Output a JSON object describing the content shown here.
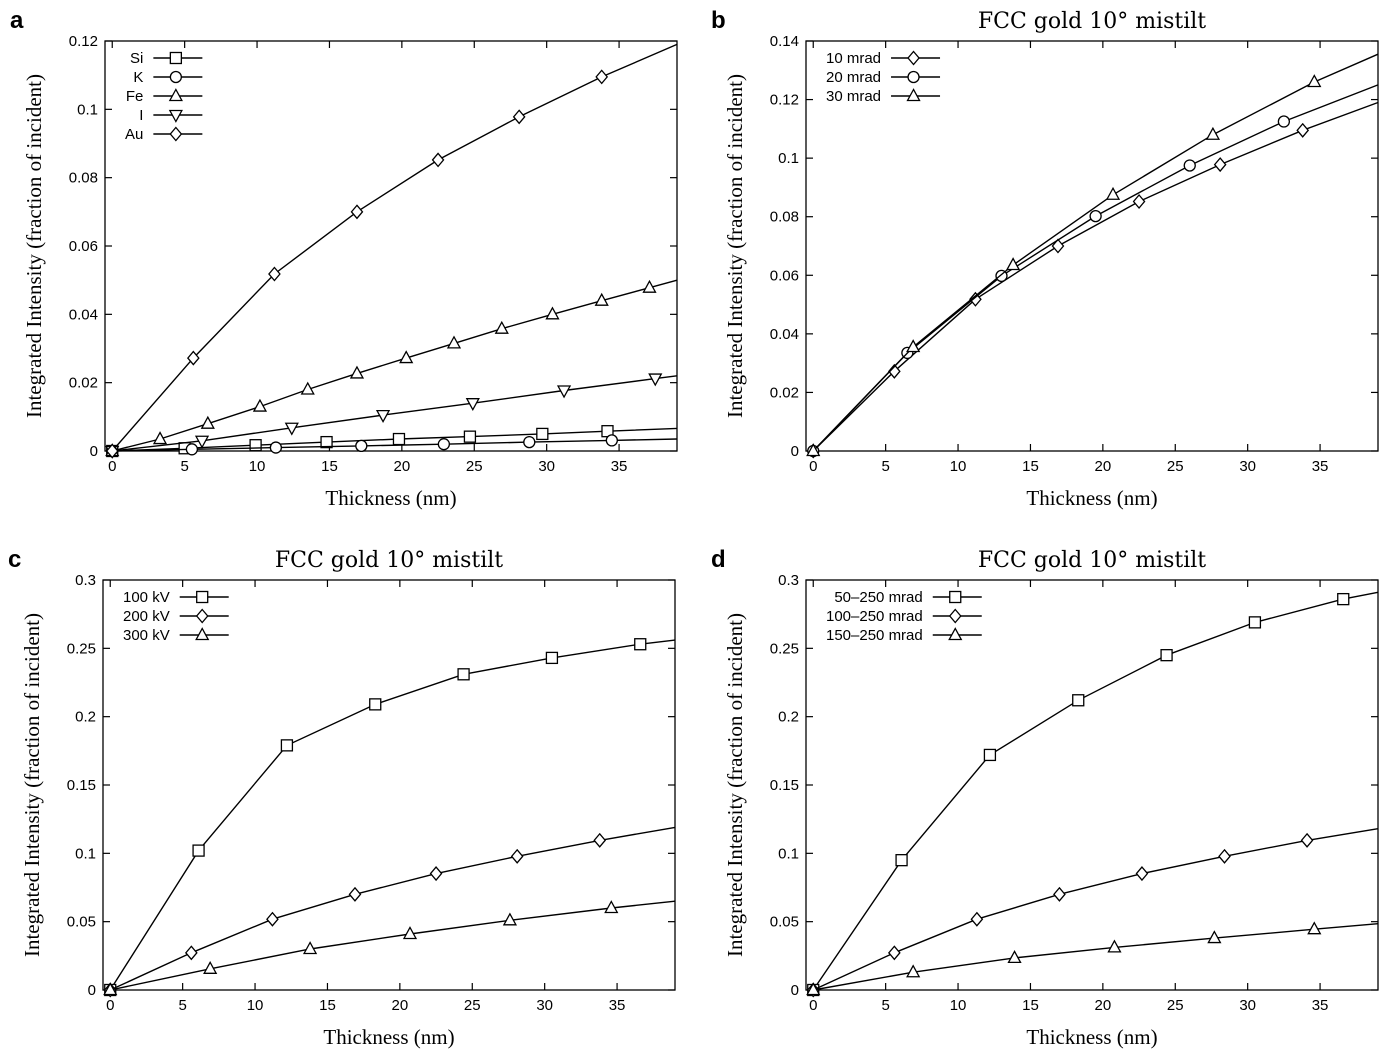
{
  "chart_data": [
    {
      "panel": "a",
      "type": "line",
      "title": "",
      "xlabel": "Thickness (nm)",
      "ylabel": "Integrated Intensity (fraction of incident)",
      "xlim": [
        -0.5,
        39
      ],
      "ylim": [
        0,
        0.12
      ],
      "xticks": [
        0,
        5,
        10,
        15,
        20,
        25,
        30,
        35
      ],
      "yticks": [
        0,
        0.02,
        0.04,
        0.06,
        0.08,
        0.1,
        0.12
      ],
      "ytick_labels": [
        "0",
        "0.02",
        "0.04",
        "0.06",
        "0.08",
        "0.1",
        "0.12"
      ],
      "grid": false,
      "legend": "top-left",
      "series": [
        {
          "name": "Si",
          "marker": "square",
          "x": [
            0,
            5.0,
            9.9,
            14.8,
            19.8,
            24.7,
            29.7,
            34.2,
            39
          ],
          "y": [
            0,
            0.0008,
            0.0017,
            0.0026,
            0.0035,
            0.0042,
            0.005,
            0.0058,
            0.0066
          ]
        },
        {
          "name": "K",
          "marker": "circle",
          "x": [
            0,
            5.5,
            11.3,
            17.2,
            22.9,
            28.8,
            34.5,
            39
          ],
          "y": [
            0,
            0.0005,
            0.001,
            0.0015,
            0.002,
            0.0026,
            0.0031,
            0.0035
          ]
        },
        {
          "name": "Fe",
          "marker": "triangle-up",
          "x": [
            0,
            3.3,
            6.6,
            10.2,
            13.5,
            16.9,
            20.3,
            23.6,
            26.9,
            30.4,
            33.8,
            37.1,
            39
          ],
          "y": [
            0,
            0.0035,
            0.008,
            0.013,
            0.018,
            0.0227,
            0.0272,
            0.0315,
            0.0358,
            0.04,
            0.044,
            0.0478,
            0.05
          ]
        },
        {
          "name": "I",
          "marker": "triangle-down",
          "x": [
            0,
            6.2,
            12.4,
            18.7,
            24.9,
            31.2,
            37.5,
            39
          ],
          "y": [
            0,
            0.003,
            0.0068,
            0.0105,
            0.014,
            0.0177,
            0.0212,
            0.022
          ]
        },
        {
          "name": "Au",
          "marker": "diamond",
          "x": [
            0,
            5.6,
            11.2,
            16.9,
            22.5,
            28.1,
            33.8,
            39
          ],
          "y": [
            0,
            0.0272,
            0.0518,
            0.07,
            0.0852,
            0.0978,
            0.1095,
            0.119
          ]
        }
      ]
    },
    {
      "panel": "b",
      "type": "line",
      "title": "FCC gold 10° mistilt",
      "xlabel": "Thickness (nm)",
      "ylabel": "Integrated Intensity (fraction of incident)",
      "xlim": [
        -0.5,
        39
      ],
      "ylim": [
        0,
        0.14
      ],
      "xticks": [
        0,
        5,
        10,
        15,
        20,
        25,
        30,
        35
      ],
      "yticks": [
        0,
        0.02,
        0.04,
        0.06,
        0.08,
        0.1,
        0.12,
        0.14
      ],
      "ytick_labels": [
        "0",
        "0.02",
        "0.04",
        "0.06",
        "0.08",
        "0.1",
        "0.12",
        "0.14"
      ],
      "grid": false,
      "legend": "top-left",
      "series": [
        {
          "name": "10 mrad",
          "marker": "diamond",
          "x": [
            0,
            5.6,
            11.2,
            16.9,
            22.5,
            28.1,
            33.8,
            39
          ],
          "y": [
            0,
            0.0272,
            0.0518,
            0.07,
            0.0852,
            0.0978,
            0.1095,
            0.119
          ]
        },
        {
          "name": "20 mrad",
          "marker": "circle",
          "x": [
            0,
            6.5,
            13.0,
            19.5,
            26.0,
            32.5,
            39
          ],
          "y": [
            0,
            0.0335,
            0.0598,
            0.0802,
            0.0975,
            0.1125,
            0.125
          ]
        },
        {
          "name": "30 mrad",
          "marker": "triangle-up",
          "x": [
            0,
            6.9,
            13.8,
            20.7,
            27.6,
            34.6,
            39
          ],
          "y": [
            0,
            0.0355,
            0.0635,
            0.0875,
            0.108,
            0.126,
            0.1355
          ]
        }
      ]
    },
    {
      "panel": "c",
      "type": "line",
      "title": "FCC gold 10° mistilt",
      "xlabel": "Thickness (nm)",
      "ylabel": "Integrated Intensity (fraction of incident)",
      "xlim": [
        -0.5,
        39
      ],
      "ylim": [
        0,
        0.3
      ],
      "xticks": [
        0,
        5,
        10,
        15,
        20,
        25,
        30,
        35
      ],
      "yticks": [
        0,
        0.05,
        0.1,
        0.15,
        0.2,
        0.25,
        0.3
      ],
      "ytick_labels": [
        "0",
        "0.05",
        "0.1",
        "0.15",
        "0.2",
        "0.25",
        "0.3"
      ],
      "grid": false,
      "legend": "top-left",
      "series": [
        {
          "name": "100 kV",
          "marker": "square",
          "x": [
            0,
            6.1,
            12.2,
            18.3,
            24.4,
            30.5,
            36.6,
            39
          ],
          "y": [
            0,
            0.102,
            0.179,
            0.209,
            0.231,
            0.243,
            0.253,
            0.256
          ]
        },
        {
          "name": "200 kV",
          "marker": "diamond",
          "x": [
            0,
            5.6,
            11.2,
            16.9,
            22.5,
            28.1,
            33.8,
            39
          ],
          "y": [
            0,
            0.0272,
            0.0518,
            0.07,
            0.0852,
            0.0978,
            0.1095,
            0.119
          ]
        },
        {
          "name": "300 kV",
          "marker": "triangle-up",
          "x": [
            0,
            6.9,
            13.8,
            20.7,
            27.6,
            34.6,
            39
          ],
          "y": [
            0,
            0.0155,
            0.03,
            0.041,
            0.051,
            0.06,
            0.065
          ]
        }
      ]
    },
    {
      "panel": "d",
      "type": "line",
      "title": "FCC gold 10° mistilt",
      "xlabel": "Thickness (nm)",
      "ylabel": "Integrated Intensity (fraction of incident)",
      "xlim": [
        -0.5,
        39
      ],
      "ylim": [
        0,
        0.3
      ],
      "xticks": [
        0,
        5,
        10,
        15,
        20,
        25,
        30,
        35
      ],
      "yticks": [
        0,
        0.05,
        0.1,
        0.15,
        0.2,
        0.25,
        0.3
      ],
      "ytick_labels": [
        "0",
        "0.05",
        "0.1",
        "0.15",
        "0.2",
        "0.25",
        "0.3"
      ],
      "grid": false,
      "legend": "top-left",
      "series": [
        {
          "name": "50–250 mrad",
          "marker": "square",
          "x": [
            0,
            6.1,
            12.2,
            18.3,
            24.4,
            30.5,
            36.6,
            39
          ],
          "y": [
            0,
            0.095,
            0.172,
            0.212,
            0.245,
            0.269,
            0.286,
            0.291
          ]
        },
        {
          "name": "100–250 mrad",
          "marker": "diamond",
          "x": [
            0,
            5.6,
            11.3,
            17.0,
            22.7,
            28.4,
            34.1,
            39
          ],
          "y": [
            0,
            0.0272,
            0.0518,
            0.07,
            0.0852,
            0.0978,
            0.1095,
            0.118
          ]
        },
        {
          "name": "150–250 mrad",
          "marker": "triangle-up",
          "x": [
            0,
            6.9,
            13.9,
            20.8,
            27.7,
            34.6,
            39
          ],
          "y": [
            0,
            0.013,
            0.0235,
            0.0312,
            0.038,
            0.0445,
            0.0485
          ]
        }
      ]
    }
  ]
}
